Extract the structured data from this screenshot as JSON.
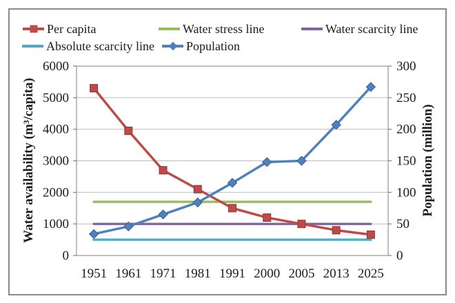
{
  "legend": {
    "items": [
      {
        "label": "Per capita",
        "color": "#BE4B48",
        "marker": "square"
      },
      {
        "label": "Water stress line",
        "color": "#9BBB59",
        "marker": "none"
      },
      {
        "label": "Water scarcity line",
        "color": "#8064A2",
        "marker": "none"
      },
      {
        "label": "Absolute scarcity line",
        "color": "#4BACC6",
        "marker": "none"
      },
      {
        "label": "Population",
        "color": "#4F81BD",
        "marker": "diamond"
      }
    ]
  },
  "chart_data": {
    "type": "line",
    "categories": [
      "1951",
      "1961",
      "1971",
      "1981",
      "1991",
      "2000",
      "2005",
      "2013",
      "2025"
    ],
    "series": [
      {
        "name": "Per capita",
        "axis": "left",
        "color": "#BE4B48",
        "marker": "square",
        "marker_border": "#8C3836",
        "values": [
          5300,
          3950,
          2700,
          2100,
          1500,
          1200,
          1000,
          800,
          660
        ]
      },
      {
        "name": "Population",
        "axis": "right",
        "color": "#4F81BD",
        "marker": "diamond",
        "marker_border": "#38618F",
        "values": [
          34,
          46,
          65,
          84,
          115,
          148,
          150,
          207,
          267
        ]
      }
    ],
    "reference_lines": [
      {
        "name": "Water stress line",
        "axis": "left",
        "value": 1700,
        "color": "#9BBB59"
      },
      {
        "name": "Water scarcity line",
        "axis": "left",
        "value": 1000,
        "color": "#8064A2"
      },
      {
        "name": "Absolute scarcity line",
        "axis": "left",
        "value": 500,
        "color": "#4BACC6"
      }
    ],
    "y_left": {
      "label": "Water availability (m³/capita)",
      "range": [
        0,
        6000
      ],
      "ticks": [
        0,
        1000,
        2000,
        3000,
        4000,
        5000,
        6000
      ]
    },
    "y_right": {
      "label": "Population (million)",
      "range": [
        0,
        300
      ],
      "ticks": [
        0,
        50,
        100,
        150,
        200,
        250,
        300
      ]
    },
    "grid": true,
    "legend_position": "top"
  },
  "colors": {
    "grid": "#c3c3c3",
    "plot_border": "#9d9d9d",
    "frame_border": "#8a8a8a",
    "tick": "#7d7d7d",
    "text": "#1c1c1c"
  }
}
